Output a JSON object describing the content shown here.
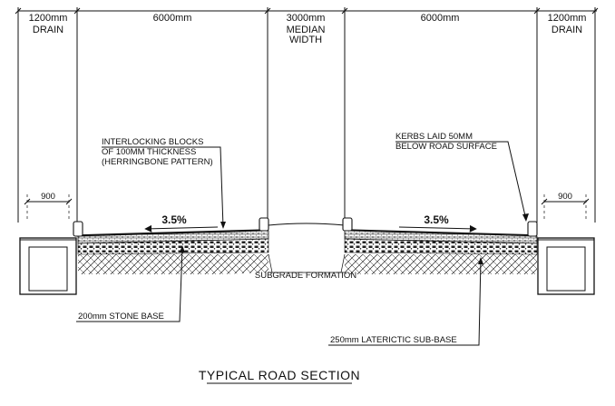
{
  "dimensions": {
    "left_drain_width": "1200mm",
    "left_drain_label": "DRAIN",
    "left_carriageway": "6000mm",
    "median_width": "3000mm",
    "median_label_1": "MEDIAN",
    "median_label_2": "WIDTH",
    "right_carriageway": "6000mm",
    "right_drain_width": "1200mm",
    "right_drain_label": "DRAIN",
    "left_drain_inner": "900",
    "right_drain_inner": "900"
  },
  "slopes": {
    "left": "3.5%",
    "right": "3.5%"
  },
  "annotations": {
    "interlock_line1": "INTERLOCKING BLOCKS",
    "interlock_line2": "OF 100MM THICKNESS",
    "interlock_line3": "(HERRINGBONE PATTERN)",
    "kerbs_line1": "KERBS LAID 50MM",
    "kerbs_line2": "BELOW ROAD SURFACE",
    "subgrade": "SUBGRADE FORMATION",
    "stone_base": "200mm STONE BASE",
    "sub_base": "250mm LATERICTIC SUB-BASE"
  },
  "title": "TYPICAL ROAD SECTION"
}
